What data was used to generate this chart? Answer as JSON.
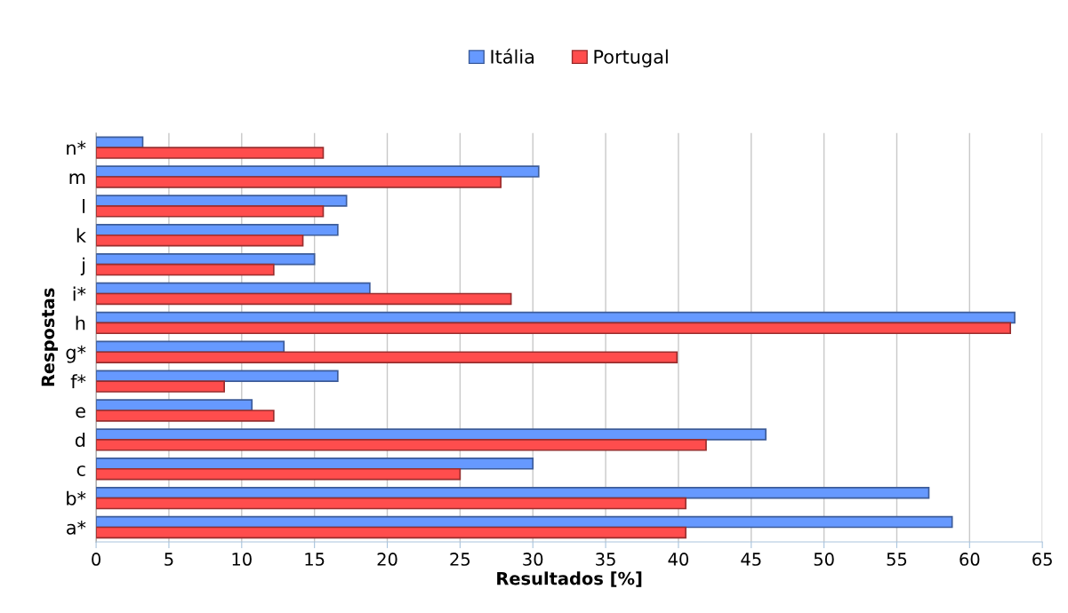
{
  "chart_data": {
    "type": "bar",
    "orientation": "horizontal",
    "xlabel": "Resultados [%]",
    "ylabel": "Respostas",
    "categories": [
      "n*",
      "m",
      "l",
      "k",
      "j",
      "i*",
      "h",
      "g*",
      "f*",
      "e",
      "d",
      "c",
      "b*",
      "a*"
    ],
    "series": [
      {
        "name": "Itália",
        "color": "#6699ff",
        "values": [
          3.2,
          30.4,
          17.2,
          16.6,
          15.0,
          18.8,
          63.1,
          12.9,
          16.6,
          10.7,
          46.0,
          30.0,
          57.2,
          58.8
        ]
      },
      {
        "name": "Portugal",
        "color": "#ff4d4d",
        "values": [
          15.6,
          27.8,
          15.6,
          14.2,
          12.2,
          28.5,
          62.8,
          39.9,
          8.8,
          12.2,
          41.9,
          25.0,
          40.5,
          40.5
        ]
      }
    ],
    "xlim": [
      0,
      65
    ],
    "xticks": [
      0,
      5,
      10,
      15,
      20,
      25,
      30,
      35,
      40,
      45,
      50,
      55,
      60,
      65
    ],
    "grid": "x",
    "legend": "top"
  }
}
